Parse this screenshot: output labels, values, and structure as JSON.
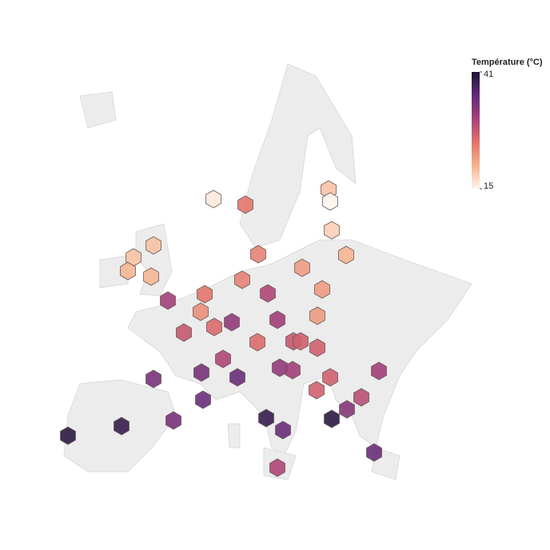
{
  "chart_data": {
    "type": "hexmap",
    "colorbar": {
      "title": "Température (°C)",
      "range": [
        15,
        41
      ],
      "ticks": [
        15,
        41
      ],
      "colorscale": [
        "#fdf5ec",
        "#f5b38f",
        "#e2706a",
        "#a8417a",
        "#5e2a7a",
        "#1e1533"
      ]
    },
    "values": [
      16,
      25,
      19,
      15,
      18,
      20,
      19,
      19,
      20,
      20,
      24,
      22,
      24,
      22,
      31,
      25,
      30,
      23,
      26,
      32,
      28,
      31,
      22,
      26,
      28,
      27,
      27,
      30,
      34,
      34,
      35,
      32,
      31,
      27,
      31,
      27,
      29,
      33,
      35,
      34,
      39,
      40,
      35,
      39,
      40,
      35,
      30
    ]
  }
}
